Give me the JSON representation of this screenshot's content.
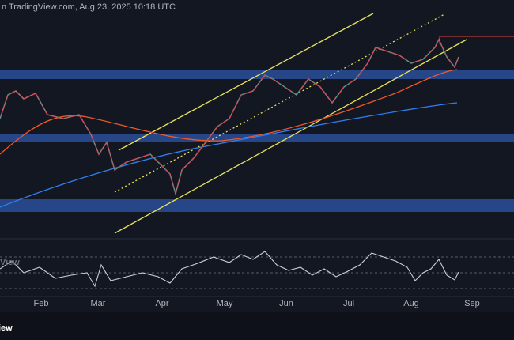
{
  "header": {
    "caption": "n TradingView.com, Aug 23, 2025 10:18 UTC"
  },
  "time_axis": {
    "labels": [
      "Feb",
      "Mar",
      "Apr",
      "May",
      "Jun",
      "Jul",
      "Aug",
      "Sep"
    ]
  },
  "watermark": {
    "text": "View"
  },
  "logo": {
    "text": "iew"
  }
}
